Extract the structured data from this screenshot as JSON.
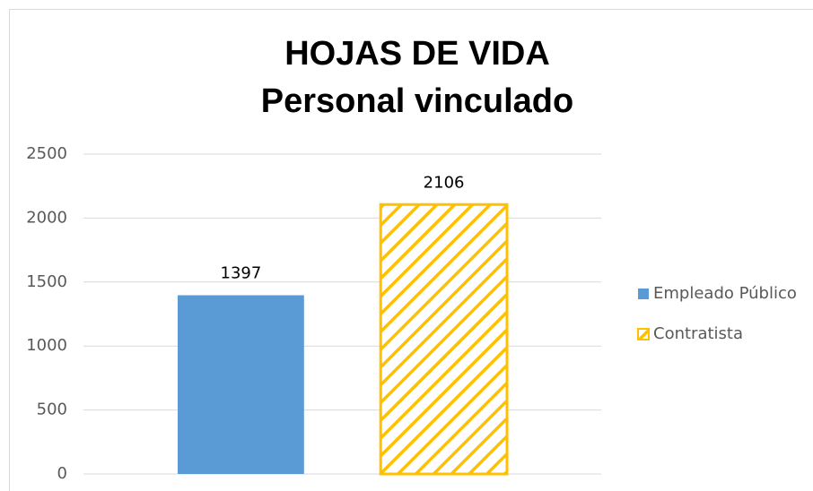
{
  "chart_data": {
    "type": "bar",
    "title": [
      "HOJAS DE VIDA",
      "Personal vinculado"
    ],
    "categories": [
      null
    ],
    "series": [
      {
        "name": "Empleado Público",
        "color": "#5b9bd5",
        "values": [
          1397
        ]
      },
      {
        "name": "Contratista",
        "color": "#ffc000",
        "pattern": "hatch",
        "values": [
          2106
        ]
      }
    ],
    "ylim": [
      0,
      2500
    ],
    "yticks": [
      0,
      500,
      1000,
      1500,
      2000,
      2500
    ],
    "grid": true,
    "legend": "right"
  }
}
